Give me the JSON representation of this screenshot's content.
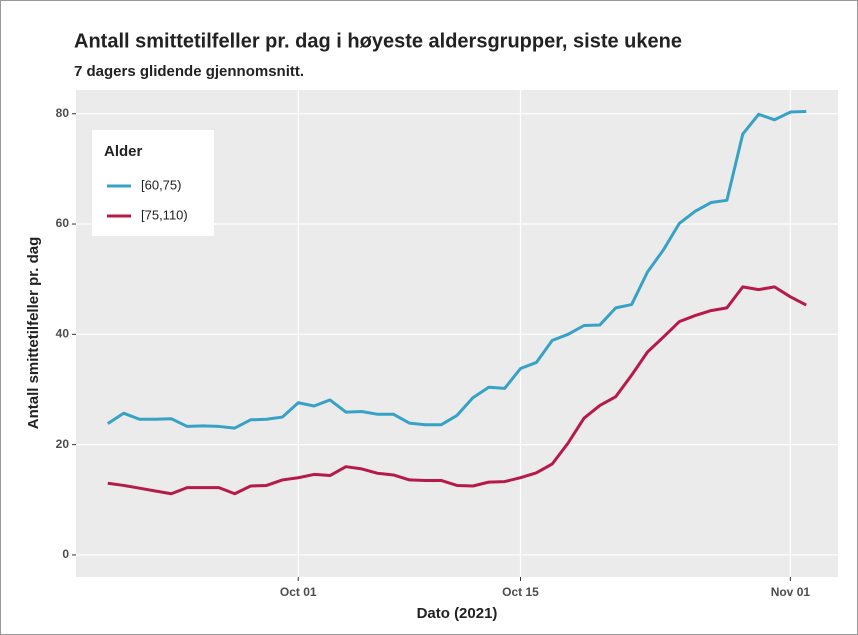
{
  "chart_data": {
    "type": "line",
    "title": "Antall smittetilfeller pr. dag i høyeste aldersgrupper, siste ukene",
    "subtitle": "7 dagers glidende gjennomsnitt.",
    "x_label": "Dato (2021)",
    "y_label": "Antall smittetilfeller pr. dag",
    "legend_title": "Alder",
    "legend_position": "top-left",
    "grid": true,
    "x": [
      "2021-09-19",
      "2021-09-20",
      "2021-09-21",
      "2021-09-22",
      "2021-09-23",
      "2021-09-24",
      "2021-09-25",
      "2021-09-26",
      "2021-09-27",
      "2021-09-28",
      "2021-09-29",
      "2021-09-30",
      "2021-10-01",
      "2021-10-02",
      "2021-10-03",
      "2021-10-04",
      "2021-10-05",
      "2021-10-06",
      "2021-10-07",
      "2021-10-08",
      "2021-10-09",
      "2021-10-10",
      "2021-10-11",
      "2021-10-12",
      "2021-10-13",
      "2021-10-14",
      "2021-10-15",
      "2021-10-16",
      "2021-10-17",
      "2021-10-18",
      "2021-10-19",
      "2021-10-20",
      "2021-10-21",
      "2021-10-22",
      "2021-10-23",
      "2021-10-24",
      "2021-10-25",
      "2021-10-26",
      "2021-10-27",
      "2021-10-28",
      "2021-10-29",
      "2021-10-30",
      "2021-10-31",
      "2021-11-01",
      "2021-11-02"
    ],
    "series": [
      {
        "name": "[60,75)",
        "color": "#37a2c6",
        "values": [
          23.8,
          25.7,
          24.6,
          24.6,
          24.7,
          23.3,
          23.4,
          23.3,
          23.0,
          24.5,
          24.6,
          25.0,
          27.6,
          27.0,
          28.1,
          25.9,
          26.0,
          25.5,
          25.5,
          23.9,
          23.6,
          23.6,
          25.3,
          28.5,
          30.4,
          30.2,
          33.8,
          34.9,
          38.9,
          40.0,
          41.6,
          41.7,
          44.8,
          45.4,
          51.3,
          55.3,
          60.1,
          62.3,
          63.9,
          64.3,
          76.3,
          79.9,
          78.9,
          80.3,
          80.4
        ]
      },
      {
        "name": "[75,110)",
        "color": "#b51a4a",
        "values": [
          13.0,
          12.6,
          12.1,
          11.6,
          11.1,
          12.2,
          12.2,
          12.2,
          11.1,
          12.5,
          12.6,
          13.6,
          14.0,
          14.6,
          14.4,
          16.0,
          15.6,
          14.8,
          14.5,
          13.6,
          13.5,
          13.5,
          12.6,
          12.5,
          13.2,
          13.3,
          14.0,
          14.9,
          16.5,
          20.3,
          24.8,
          27.1,
          28.7,
          32.6,
          36.8,
          39.5,
          42.3,
          43.4,
          44.3,
          44.8,
          48.6,
          48.1,
          48.6,
          46.8,
          45.3
        ]
      }
    ],
    "xlim": [
      "2021-09-17",
      "2021-11-04"
    ],
    "xticks": [
      {
        "value": "2021-10-01",
        "label": "Oct 01"
      },
      {
        "value": "2021-10-15",
        "label": "Oct 15"
      },
      {
        "value": "2021-11-01",
        "label": "Nov 01"
      }
    ],
    "ylim": [
      -4,
      84.3
    ],
    "yticks": [
      0,
      20,
      40,
      60,
      80
    ]
  }
}
